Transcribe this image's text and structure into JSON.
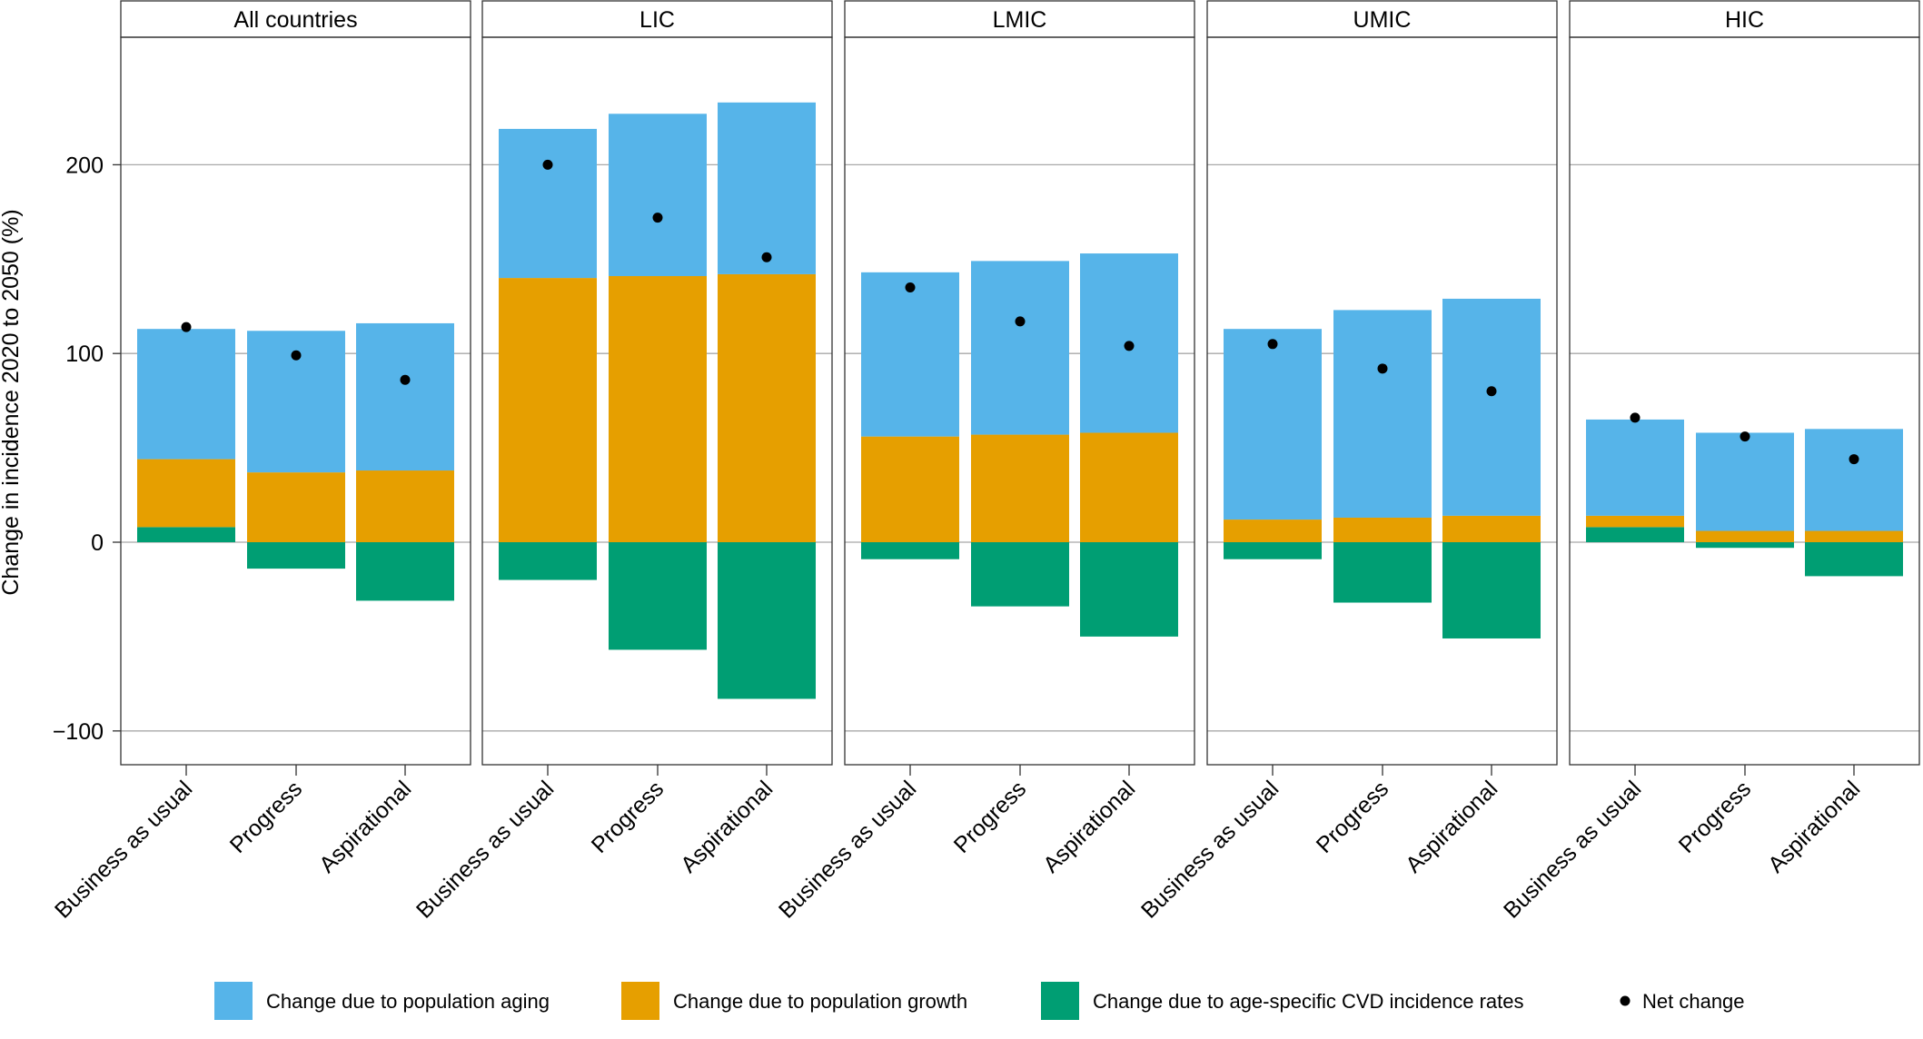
{
  "chart_data": {
    "type": "bar",
    "stacked": true,
    "ylabel": "Change in incidence 2020 to 2050 (%)",
    "xlabel": "",
    "ylim": [
      -118,
      268
    ],
    "yticks": [
      -100,
      0,
      100,
      200
    ],
    "grid": true,
    "legend_position": "bottom",
    "categories": [
      "Business as usual",
      "Progress",
      "Aspirational"
    ],
    "series": [
      {
        "name": "Change due to population aging",
        "color": "#56B4E9"
      },
      {
        "name": "Change due to population growth",
        "color": "#E69F00"
      },
      {
        "name": "Change due to age-specific CVD incidence rates",
        "color": "#009E73"
      }
    ],
    "net_series": {
      "name": "Net change",
      "color": "#000000"
    },
    "panels": [
      {
        "title": "All countries",
        "aging": [
          69,
          75,
          78
        ],
        "growth": [
          36,
          37,
          38
        ],
        "rates": [
          8,
          -14,
          -31
        ],
        "net": [
          114,
          99,
          86
        ]
      },
      {
        "title": "LIC",
        "aging": [
          79,
          86,
          91
        ],
        "growth": [
          140,
          141,
          142
        ],
        "rates": [
          -20,
          -57,
          -83
        ],
        "net": [
          200,
          172,
          151
        ]
      },
      {
        "title": "LMIC",
        "aging": [
          87,
          92,
          95
        ],
        "growth": [
          56,
          57,
          58
        ],
        "rates": [
          -9,
          -34,
          -50
        ],
        "net": [
          135,
          117,
          104
        ]
      },
      {
        "title": "UMIC",
        "aging": [
          101,
          110,
          115
        ],
        "growth": [
          12,
          13,
          14
        ],
        "rates": [
          -9,
          -32,
          -51
        ],
        "net": [
          105,
          92,
          80
        ]
      },
      {
        "title": "HIC",
        "aging": [
          51,
          52,
          54
        ],
        "growth": [
          6,
          6,
          6
        ],
        "rates": [
          8,
          -3,
          -18
        ],
        "net": [
          66,
          56,
          44
        ]
      }
    ]
  }
}
